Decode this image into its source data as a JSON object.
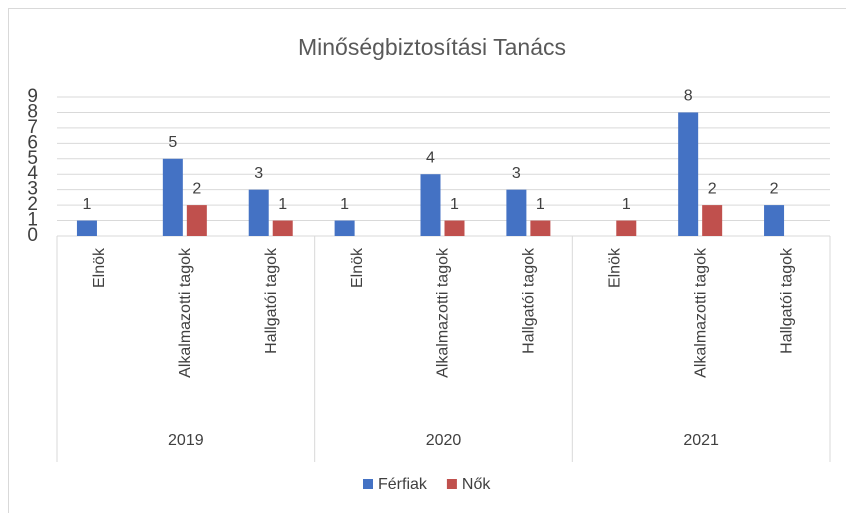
{
  "chart_data": {
    "type": "bar",
    "title": "Minőségbiztosítási Tanács",
    "categories": [
      "Elnök",
      "Alkalmazotti tagok",
      "Hallgatói tagok",
      "Elnök",
      "Alkalmazotti tagok",
      "Hallgatói tagok",
      "Elnök",
      "Alkalmazotti tagok",
      "Hallgatói tagok"
    ],
    "groups": [
      "2019",
      "2020",
      "2021"
    ],
    "series": [
      {
        "name": "Férfiak",
        "color": "#4472c4",
        "values": [
          1,
          5,
          3,
          1,
          4,
          3,
          null,
          8,
          2
        ]
      },
      {
        "name": "Nők",
        "color": "#c0504d",
        "values": [
          null,
          2,
          1,
          null,
          1,
          1,
          1,
          2,
          null
        ]
      }
    ],
    "ylim": [
      0,
      9
    ],
    "yticks": [
      0,
      1,
      2,
      3,
      4,
      5,
      6,
      7,
      8,
      9
    ],
    "grid": true,
    "legend": "bottom"
  }
}
